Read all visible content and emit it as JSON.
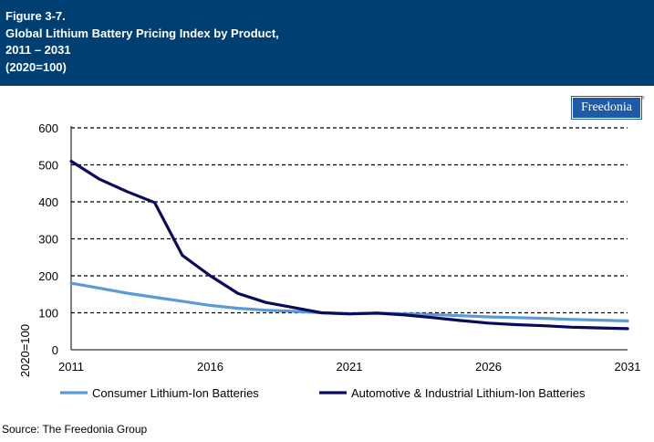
{
  "header": {
    "figure": "Figure 3-7.",
    "title_line1": "Global Lithium Battery Pricing Index by Product,",
    "title_line2": "2011 – 2031",
    "title_line3": "(2020=100)"
  },
  "logo": {
    "text": "Freedonia",
    "mark": "®"
  },
  "source": "Source: The Freedonia Group",
  "chart_data": {
    "type": "line",
    "ylabel": "2020=100",
    "ylim": [
      0,
      600
    ],
    "yticks": [
      0,
      100,
      200,
      300,
      400,
      500,
      600
    ],
    "xlim": [
      2011,
      2031
    ],
    "xticks": [
      2011,
      2016,
      2021,
      2026,
      2031
    ],
    "grid": "horizontal dashed",
    "legend_position": "bottom",
    "x": [
      2011,
      2012,
      2013,
      2014,
      2015,
      2016,
      2017,
      2018,
      2019,
      2020,
      2021,
      2022,
      2023,
      2024,
      2025,
      2026,
      2027,
      2028,
      2029,
      2030,
      2031
    ],
    "series": [
      {
        "name": "Consumer Lithium-Ion Batteries",
        "color": "#5b9bd5",
        "values": [
          180,
          167,
          153,
          142,
          131,
          120,
          112,
          107,
          104,
          100,
          97,
          99,
          97,
          95,
          92,
          89,
          87,
          85,
          82,
          80,
          78
        ]
      },
      {
        "name": "Automotive & Industrial Lithium-Ion Batteries",
        "color": "#0b0b5c",
        "values": [
          510,
          462,
          428,
          398,
          255,
          200,
          152,
          128,
          114,
          100,
          97,
          99,
          94,
          87,
          79,
          72,
          68,
          65,
          61,
          59,
          57
        ]
      }
    ]
  }
}
